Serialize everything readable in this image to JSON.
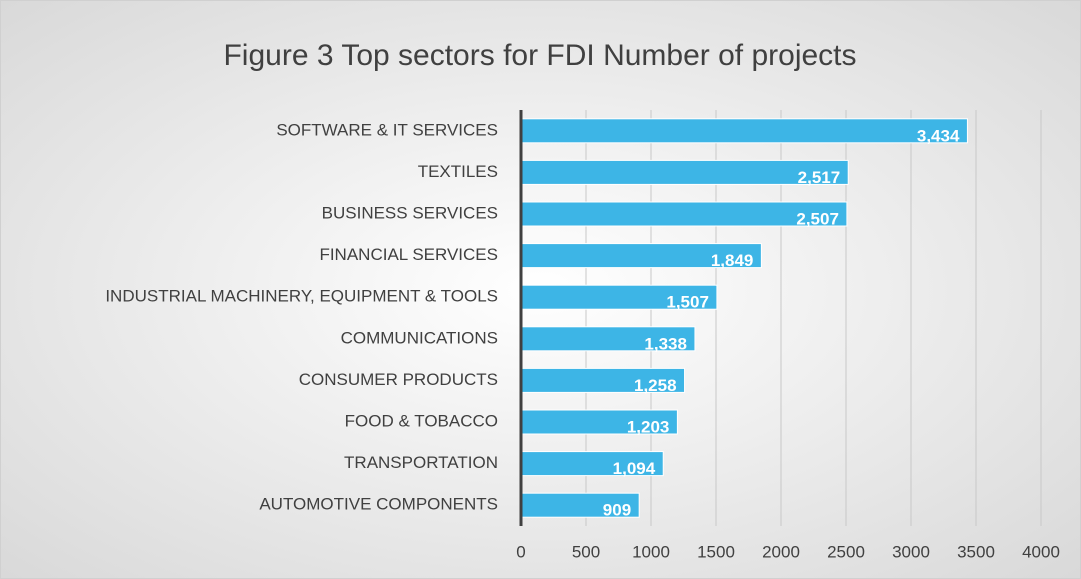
{
  "chart_data": {
    "type": "bar",
    "orientation": "horizontal",
    "title": "Figure 3 Top sectors for FDI Number of projects",
    "categories": [
      "SOFTWARE & IT SERVICES",
      "TEXTILES",
      "BUSINESS SERVICES",
      "FINANCIAL SERVICES",
      "INDUSTRIAL MACHINERY, EQUIPMENT & TOOLS",
      "COMMUNICATIONS",
      "CONSUMER PRODUCTS",
      "FOOD & TOBACCO",
      "TRANSPORTATION",
      "AUTOMOTIVE COMPONENTS"
    ],
    "values": [
      3434,
      2517,
      2507,
      1849,
      1507,
      1338,
      1258,
      1203,
      1094,
      909
    ],
    "value_labels": [
      "3,434",
      "2,517",
      "2,507",
      "1,849",
      "1,507",
      "1,338",
      "1,258",
      "1,203",
      "1,094",
      "909"
    ],
    "color": "#3db5e6",
    "xlim": [
      0,
      4000
    ],
    "xticks": [
      0,
      500,
      1000,
      1500,
      2000,
      2500,
      3000,
      3500,
      4000
    ],
    "grid": true
  }
}
